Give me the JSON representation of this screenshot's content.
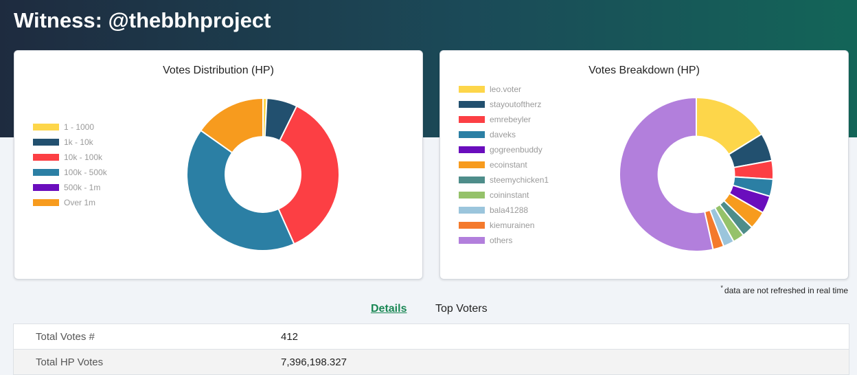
{
  "page": {
    "title": "Witness: @thebbhproject"
  },
  "distribution": {
    "title": "Votes Distribution (HP)",
    "legend": [
      {
        "label": "1 - 1000",
        "color": "#fdd64a"
      },
      {
        "label": "1k - 10k",
        "color": "#22506f"
      },
      {
        "label": "10k - 100k",
        "color": "#fc3f44"
      },
      {
        "label": "100k - 500k",
        "color": "#2b7fa4"
      },
      {
        "label": "500k - 1m",
        "color": "#6a0dbd"
      },
      {
        "label": "Over 1m",
        "color": "#f79b1e"
      }
    ]
  },
  "breakdown": {
    "title": "Votes Breakdown (HP)",
    "legend": [
      {
        "label": "leo.voter",
        "color": "#fdd64a"
      },
      {
        "label": "stayoutoftherz",
        "color": "#22506f"
      },
      {
        "label": "emrebeyler",
        "color": "#fc3f44"
      },
      {
        "label": "daveks",
        "color": "#2b7fa4"
      },
      {
        "label": "gogreenbuddy",
        "color": "#6a0dbd"
      },
      {
        "label": "ecoinstant",
        "color": "#f79b1e"
      },
      {
        "label": "steemychicken1",
        "color": "#4e8d8a"
      },
      {
        "label": "coininstant",
        "color": "#95c26a"
      },
      {
        "label": "bala41288",
        "color": "#9bc5dc"
      },
      {
        "label": "kiemurainen",
        "color": "#f47a2c"
      },
      {
        "label": "others",
        "color": "#b27fdc"
      }
    ]
  },
  "chart_data": [
    {
      "type": "pie",
      "title": "Votes Distribution (HP)",
      "categories": [
        "1 - 1000",
        "1k - 10k",
        "10k - 100k",
        "100k - 500k",
        "500k - 1m",
        "Over 1m"
      ],
      "values": [
        0.8,
        6.5,
        36.0,
        41.5,
        0,
        15.2
      ],
      "colors": [
        "#fdd64a",
        "#22506f",
        "#fc3f44",
        "#2b7fa4",
        "#6a0dbd",
        "#f79b1e"
      ],
      "donut": true
    },
    {
      "type": "pie",
      "title": "Votes Breakdown (HP)",
      "categories": [
        "leo.voter",
        "stayoutoftherz",
        "emrebeyler",
        "daveks",
        "gogreenbuddy",
        "ecoinstant",
        "steemychicken1",
        "coininstant",
        "bala41288",
        "kiemurainen",
        "others"
      ],
      "values": [
        16.2,
        5.9,
        3.9,
        3.6,
        3.7,
        3.8,
        2.4,
        2.4,
        2.3,
        2.3,
        53.5
      ],
      "colors": [
        "#fdd64a",
        "#22506f",
        "#fc3f44",
        "#2b7fa4",
        "#6a0dbd",
        "#f79b1e",
        "#4e8d8a",
        "#95c26a",
        "#9bc5dc",
        "#f47a2c",
        "#b27fdc"
      ],
      "donut": true
    }
  ],
  "note": {
    "mark": "*",
    "text": "data are not refreshed in real time"
  },
  "tabs": {
    "details": "Details",
    "top_voters": "Top Voters"
  },
  "details_table": [
    {
      "label": "Total Votes #",
      "value": "412"
    },
    {
      "label": "Total HP Votes",
      "value": "7,396,198.327"
    }
  ]
}
